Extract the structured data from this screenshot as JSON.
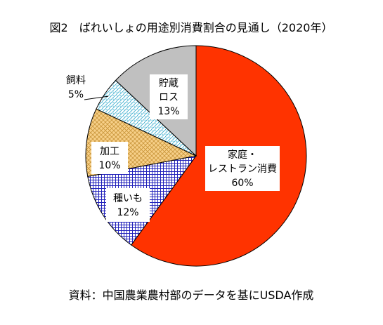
{
  "chart_data": {
    "type": "pie",
    "title": "図2　ばれいしょの用途別消費割合の見通し（2020年）",
    "source": "資料：中国農業農村部のデータを基にUSDA作成",
    "slices": [
      {
        "label_lines": [
          "家庭・",
          "レストラン消費"
        ],
        "value": 60,
        "value_label": "60%",
        "fill": "#ff3300",
        "pattern": "solid"
      },
      {
        "label_lines": [
          "種いも"
        ],
        "value": 12,
        "value_label": "12%",
        "fill": "#3333cc",
        "pattern": "grid"
      },
      {
        "label_lines": [
          "加工"
        ],
        "value": 10,
        "value_label": "10%",
        "fill": "#f5c87a",
        "pattern": "crosshatch"
      },
      {
        "label_lines": [
          "飼料"
        ],
        "value": 5,
        "value_label": "5%",
        "fill": "#33aacc",
        "pattern": "dots"
      },
      {
        "label_lines": [
          "貯蔵",
          "ロス"
        ],
        "value": 13,
        "value_label": "13%",
        "fill": "#c0c0c0",
        "pattern": "solid"
      }
    ]
  }
}
